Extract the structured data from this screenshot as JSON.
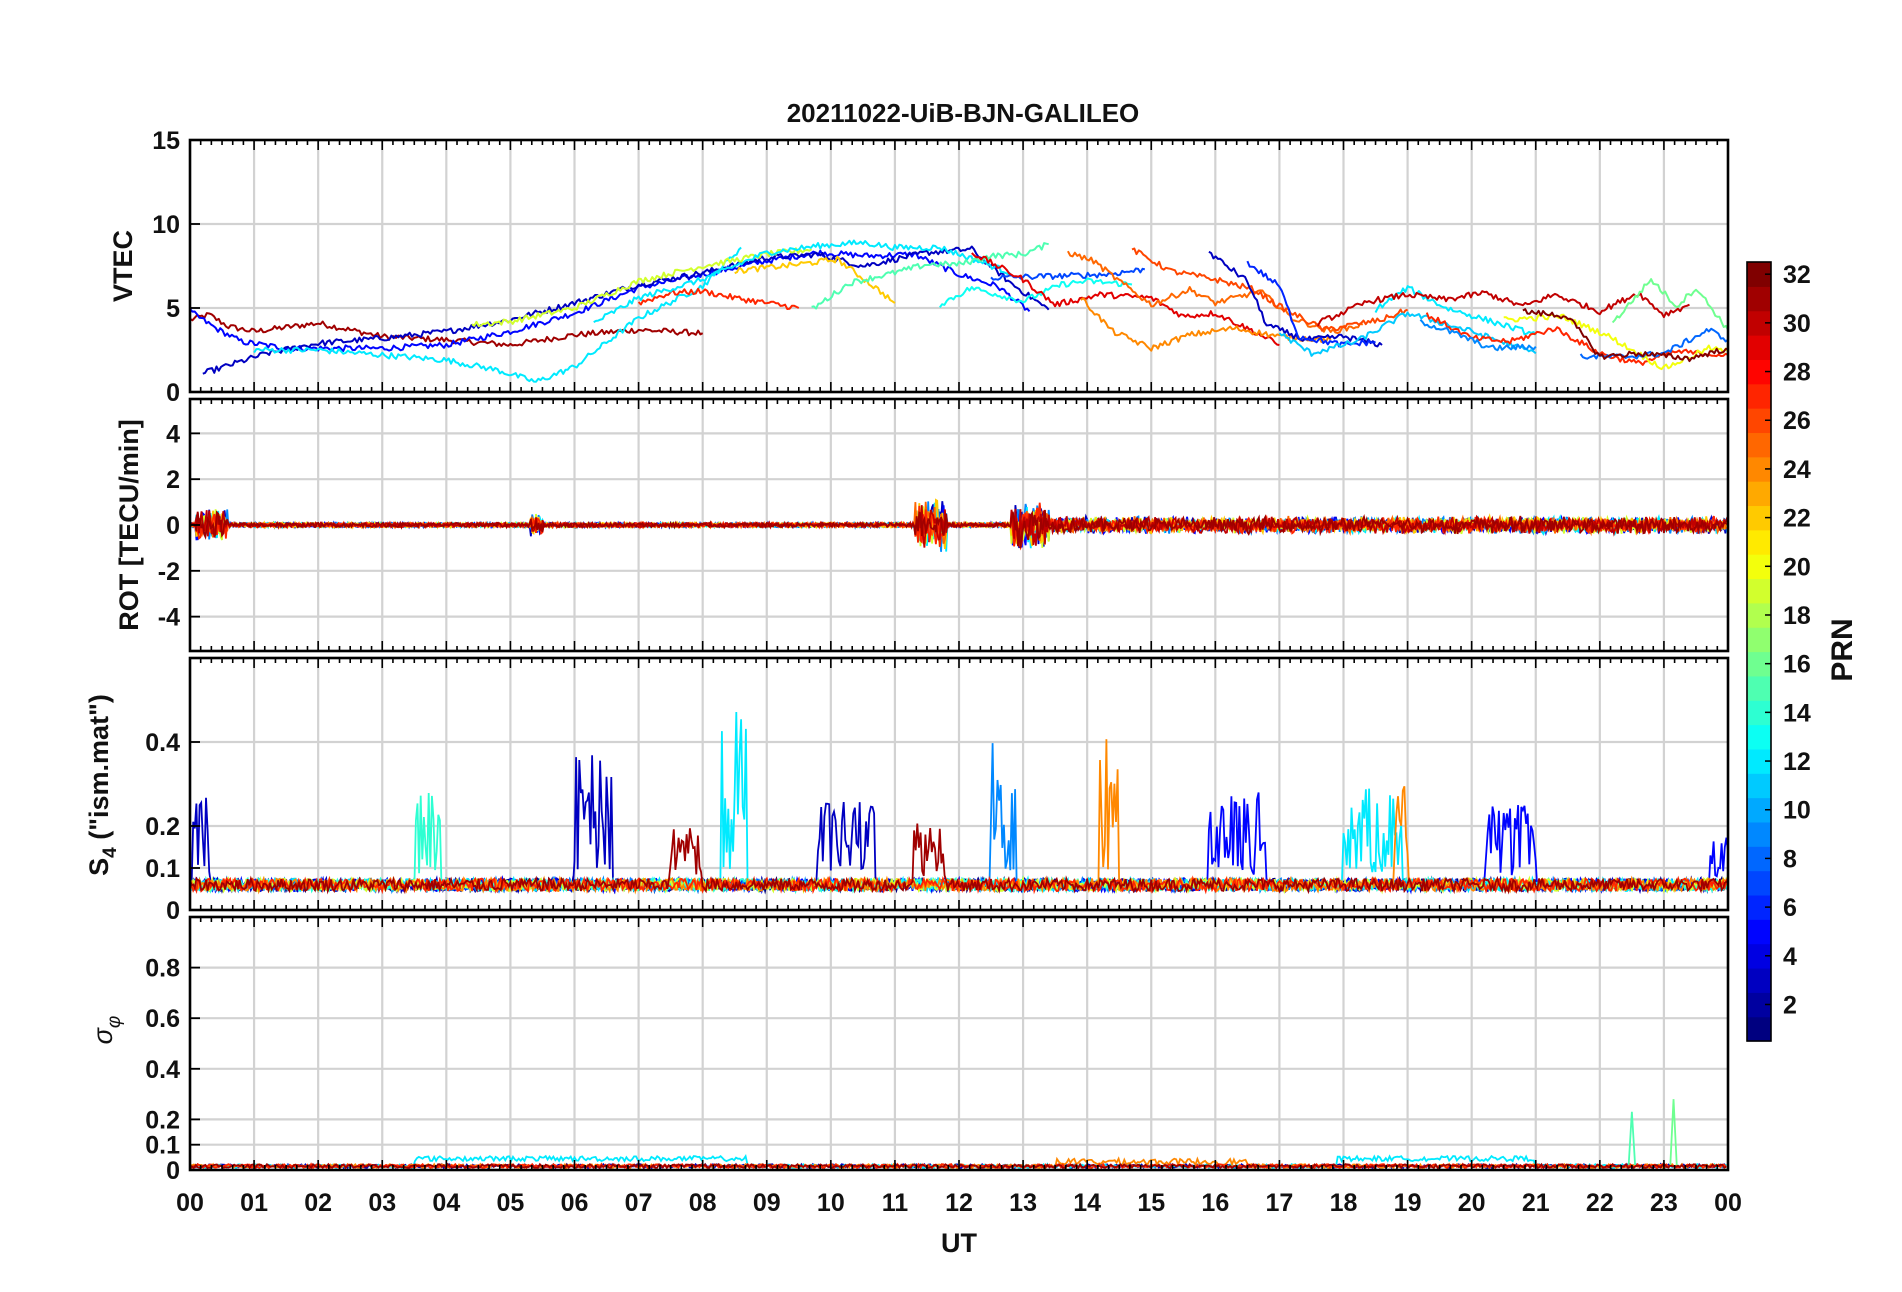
{
  "chart_data": {
    "type": "line",
    "title": "20211022-UiB-BJN-GALILEO",
    "xlabel": "UT",
    "xlim": [
      0,
      24
    ],
    "x_tick_labels": [
      "00",
      "01",
      "02",
      "03",
      "04",
      "05",
      "06",
      "07",
      "08",
      "09",
      "10",
      "11",
      "12",
      "13",
      "14",
      "15",
      "16",
      "17",
      "18",
      "19",
      "20",
      "21",
      "22",
      "23",
      "00"
    ],
    "colorbar": {
      "label": "PRN",
      "range": [
        1,
        32
      ],
      "tick_labels": [
        "2",
        "4",
        "6",
        "8",
        "10",
        "12",
        "14",
        "16",
        "18",
        "20",
        "22",
        "24",
        "26",
        "28",
        "30",
        "32"
      ],
      "colormap": "jet"
    },
    "panels": [
      {
        "id": "vtec",
        "ylabel": "VTEC",
        "ylim": [
          0,
          15
        ],
        "ytick_labels": [
          "0",
          "5",
          "10",
          "15"
        ],
        "series": [
          {
            "prn": 31,
            "values": [
              [
                0,
                4.3
              ],
              [
                0.3,
                4.6
              ],
              [
                0.6,
                3.9
              ],
              [
                1,
                3.6
              ],
              [
                2,
                4.1
              ],
              [
                3,
                3.3
              ],
              [
                4,
                3.1
              ],
              [
                5,
                2.8
              ],
              [
                6,
                3.4
              ],
              [
                7,
                3.7
              ],
              [
                8,
                3.5
              ]
            ]
          },
          {
            "prn": 5,
            "values": [
              [
                0,
                4.8
              ],
              [
                0.4,
                3.8
              ],
              [
                0.8,
                3.0
              ],
              [
                1.5,
                2.6
              ],
              [
                2.5,
                2.6
              ],
              [
                3,
                2.6
              ],
              [
                4,
                2.8
              ],
              [
                5,
                3.6
              ],
              [
                6,
                4.7
              ],
              [
                7,
                6.2
              ],
              [
                8,
                7.0
              ],
              [
                9,
                7.8
              ],
              [
                9.8,
                8.3
              ],
              [
                10.6,
                8.1
              ],
              [
                11.3,
                8.2
              ],
              [
                12,
                7.0
              ],
              [
                12.6,
                6.3
              ],
              [
                13.1,
                4.8
              ]
            ]
          },
          {
            "prn": 3,
            "values": [
              [
                0.2,
                1.1
              ],
              [
                0.7,
                1.7
              ],
              [
                1.2,
                2.3
              ],
              [
                2,
                2.9
              ],
              [
                3,
                3.2
              ],
              [
                4,
                3.6
              ],
              [
                5,
                4.3
              ],
              [
                6,
                5.3
              ],
              [
                7,
                6.4
              ],
              [
                8,
                7.1
              ],
              [
                9,
                8.0
              ],
              [
                9.8,
                8.2
              ],
              [
                10.5,
                7.5
              ],
              [
                11.5,
                8.3
              ],
              [
                12.2,
                8.5
              ],
              [
                12.8,
                6.5
              ],
              [
                13.4,
                4.9
              ]
            ]
          },
          {
            "prn": 12,
            "values": [
              [
                1.0,
                2.5
              ],
              [
                2,
                2.5
              ],
              [
                3,
                2.2
              ],
              [
                4,
                1.9
              ],
              [
                4.8,
                1.3
              ],
              [
                5.4,
                0.6
              ],
              [
                6,
                1.5
              ],
              [
                7,
                4.4
              ],
              [
                8,
                6.3
              ],
              [
                8.6,
                8.6
              ]
            ]
          },
          {
            "prn": 19,
            "values": [
              [
                4.4,
                4.0
              ],
              [
                5,
                4.2
              ],
              [
                6,
                5.0
              ],
              [
                7,
                6.6
              ],
              [
                8,
                7.5
              ],
              [
                9,
                8.2
              ],
              [
                9.7,
                8.5
              ]
            ]
          },
          {
            "prn": 27,
            "values": [
              [
                7,
                5.3
              ],
              [
                7.5,
                5.9
              ],
              [
                8,
                6.0
              ],
              [
                8.5,
                5.6
              ],
              [
                9.5,
                5.0
              ]
            ]
          },
          {
            "prn": 12,
            "values": [
              [
                6.3,
                4.1
              ],
              [
                7,
                5.6
              ],
              [
                8,
                6.7
              ],
              [
                9,
                8.3
              ],
              [
                9.8,
                8.7
              ],
              [
                10.5,
                8.9
              ],
              [
                11,
                8.6
              ],
              [
                11.7,
                8.6
              ],
              [
                12.3,
                7.8
              ],
              [
                12.8,
                7.1
              ]
            ]
          },
          {
            "prn": 22,
            "values": [
              [
                8.5,
                7.2
              ],
              [
                9.5,
                7.6
              ],
              [
                10.1,
                7.9
              ],
              [
                10.7,
                6.2
              ],
              [
                11.0,
                5.3
              ]
            ]
          },
          {
            "prn": 15,
            "values": [
              [
                9.7,
                4.9
              ],
              [
                10.3,
                6.5
              ],
              [
                11,
                7.1
              ],
              [
                11.5,
                7.6
              ],
              [
                12,
                7.6
              ],
              [
                12.5,
                8.1
              ],
              [
                13,
                8.2
              ],
              [
                13.4,
                8.8
              ]
            ]
          },
          {
            "prn": 13,
            "values": [
              [
                11.7,
                5.2
              ],
              [
                12.2,
                6.2
              ],
              [
                13,
                5.4
              ],
              [
                13.6,
                6.4
              ],
              [
                14,
                6.6
              ],
              [
                14.7,
                6.4
              ]
            ]
          },
          {
            "prn": 7,
            "values": [
              [
                12.5,
                6.8
              ],
              [
                13.5,
                6.9
              ],
              [
                14.3,
                7.0
              ],
              [
                14.9,
                7.3
              ]
            ]
          },
          {
            "prn": 29,
            "values": [
              [
                12.2,
                8.3
              ],
              [
                13,
                6.7
              ],
              [
                13.5,
                5.2
              ],
              [
                14.2,
                5.8
              ],
              [
                15,
                5.6
              ],
              [
                15.5,
                4.5
              ],
              [
                16,
                4.7
              ],
              [
                16.6,
                3.6
              ],
              [
                17,
                2.8
              ]
            ]
          },
          {
            "prn": 25,
            "values": [
              [
                13.7,
                8.3
              ],
              [
                14.1,
                7.8
              ],
              [
                14.5,
                6.6
              ],
              [
                15,
                5.2
              ],
              [
                15.6,
                6.1
              ],
              [
                16,
                5.3
              ],
              [
                16.7,
                6.0
              ],
              [
                17.2,
                4.4
              ],
              [
                17.8,
                3.6
              ],
              [
                18.3,
                4.0
              ]
            ]
          },
          {
            "prn": 24,
            "values": [
              [
                13.9,
                5.6
              ],
              [
                14.4,
                3.6
              ],
              [
                15,
                2.6
              ],
              [
                15.6,
                3.4
              ],
              [
                16.3,
                3.8
              ],
              [
                17,
                3.3
              ],
              [
                17.8,
                3.1
              ]
            ]
          },
          {
            "prn": 26,
            "values": [
              [
                14.7,
                8.5
              ],
              [
                15.3,
                7.2
              ],
              [
                16,
                6.7
              ],
              [
                16.6,
                6.1
              ],
              [
                17,
                5.1
              ],
              [
                17.7,
                3.7
              ],
              [
                18.6,
                4.3
              ],
              [
                19,
                4.9
              ]
            ]
          },
          {
            "prn": 3,
            "values": [
              [
                15.9,
                8.3
              ],
              [
                16.5,
                6.6
              ],
              [
                16.8,
                4.0
              ],
              [
                17.4,
                3.1
              ],
              [
                18,
                3.3
              ],
              [
                18.6,
                2.8
              ]
            ]
          },
          {
            "prn": 6,
            "values": [
              [
                16.5,
                7.7
              ],
              [
                17,
                6.3
              ],
              [
                17.3,
                3.3
              ],
              [
                18,
                2.8
              ],
              [
                18.5,
                3.0
              ]
            ]
          },
          {
            "prn": 11,
            "values": [
              [
                17.0,
                3.5
              ],
              [
                17.5,
                2.3
              ],
              [
                18.2,
                3.0
              ],
              [
                19,
                4.7
              ],
              [
                20,
                3.6
              ],
              [
                21,
                2.3
              ]
            ]
          },
          {
            "prn": 12,
            "values": [
              [
                18.5,
                4.9
              ],
              [
                19,
                6.2
              ],
              [
                19.6,
                5.0
              ],
              [
                20.4,
                4.1
              ],
              [
                21,
                3.4
              ]
            ]
          },
          {
            "prn": 30,
            "values": [
              [
                17.6,
                4.1
              ],
              [
                18.4,
                5.4
              ],
              [
                19,
                5.8
              ],
              [
                19.6,
                5.5
              ],
              [
                20.2,
                5.9
              ],
              [
                20.8,
                5.1
              ],
              [
                21.3,
                5.8
              ],
              [
                22,
                4.8
              ],
              [
                22.6,
                5.9
              ],
              [
                23,
                4.6
              ],
              [
                23.4,
                5.2
              ]
            ]
          },
          {
            "prn": 27,
            "values": [
              [
                19.3,
                4.6
              ],
              [
                20,
                3.2
              ],
              [
                20.6,
                3.0
              ],
              [
                21.3,
                3.8
              ],
              [
                22,
                2.3
              ],
              [
                22.6,
                1.7
              ],
              [
                23.2,
                2.4
              ],
              [
                24,
                2.2
              ]
            ]
          },
          {
            "prn": 20,
            "values": [
              [
                20.5,
                4.3
              ],
              [
                21.4,
                4.5
              ],
              [
                22.1,
                3.4
              ],
              [
                23,
                1.4
              ],
              [
                23.7,
                2.6
              ],
              [
                24,
                2.4
              ]
            ]
          },
          {
            "prn": 9,
            "values": [
              [
                19.2,
                4.2
              ],
              [
                19.8,
                3.4
              ],
              [
                20.3,
                2.6
              ],
              [
                21,
                2.7
              ]
            ]
          },
          {
            "prn": 16,
            "values": [
              [
                22.2,
                4.1
              ],
              [
                22.8,
                6.7
              ],
              [
                23.2,
                5.1
              ],
              [
                23.5,
                6.2
              ],
              [
                23.8,
                4.7
              ],
              [
                24,
                3.7
              ]
            ]
          },
          {
            "prn": 8,
            "values": [
              [
                21.7,
                2.1
              ],
              [
                22.4,
                2.1
              ],
              [
                23,
                2.3
              ],
              [
                23.7,
                3.7
              ],
              [
                24,
                3.1
              ]
            ]
          },
          {
            "prn": 32,
            "values": [
              [
                20.8,
                4.8
              ],
              [
                21.5,
                4.5
              ],
              [
                22,
                2.1
              ],
              [
                22.6,
                2.3
              ],
              [
                23.4,
                2.0
              ],
              [
                24,
                2.6
              ]
            ]
          }
        ]
      },
      {
        "id": "rot",
        "ylabel": "ROT [TECU/min]",
        "ylim": [
          -5.5,
          5.5
        ],
        "ytick_labels": [
          "-4",
          "-2",
          "0",
          "2",
          "4"
        ]
      },
      {
        "id": "s4",
        "ylabel": "S4 (\"ism.mat\")",
        "ylabel_main": "S",
        "ylabel_sub": "4",
        "ylabel_rest": " (\"ism.mat\")",
        "ylim": [
          0,
          0.6
        ],
        "ytick_labels": [
          "0",
          "0.1",
          "0.2",
          "0.4"
        ]
      },
      {
        "id": "sigma",
        "ylabel": "σφ",
        "ylabel_main": "σ",
        "ylabel_sub": "φ",
        "ylim": [
          0,
          1
        ],
        "ytick_labels": [
          "0",
          "0.1",
          "0.2",
          "0.4",
          "0.6",
          "0.8"
        ]
      }
    ]
  }
}
